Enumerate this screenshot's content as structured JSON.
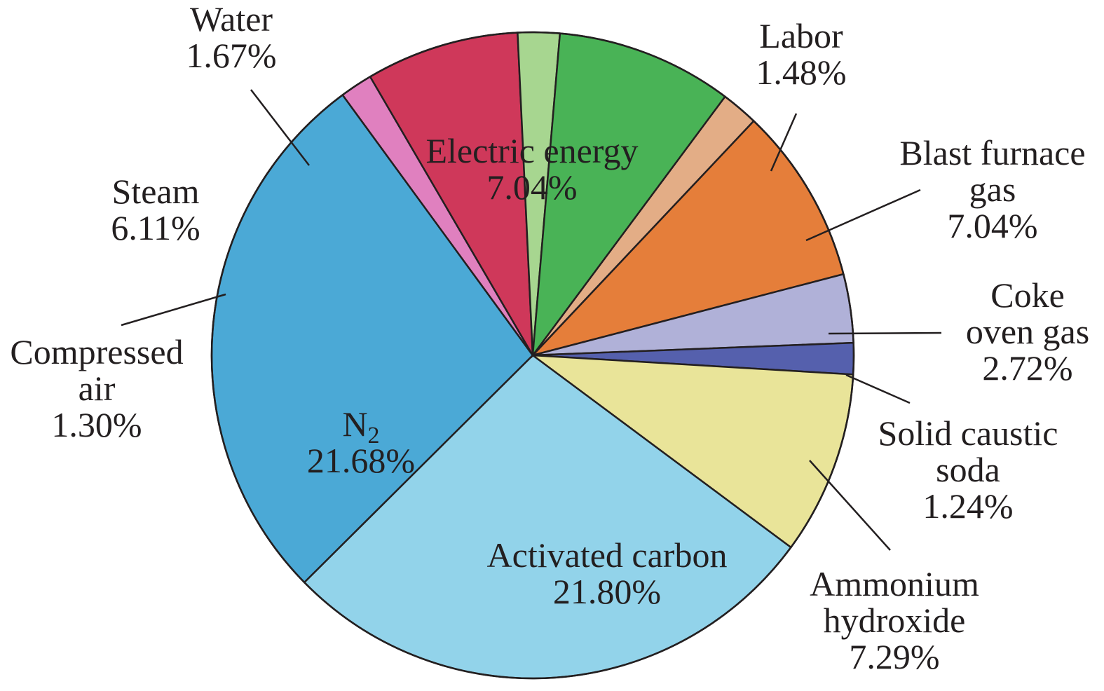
{
  "chart_data": {
    "type": "pie",
    "title": "",
    "slices": [
      {
        "key": "labor",
        "label_lines": [
          "Labor"
        ],
        "value_text": "1.48%",
        "value": 1.48,
        "color": "#e3ad86"
      },
      {
        "key": "bfg",
        "label_lines": [
          "Blast furnace",
          "gas"
        ],
        "value_text": "7.04%",
        "value": 7.04,
        "color": "#e57e3a"
      },
      {
        "key": "coke",
        "label_lines": [
          "Coke",
          "oven gas"
        ],
        "value_text": "2.72%",
        "value": 2.72,
        "color": "#b0b1d8"
      },
      {
        "key": "soda",
        "label_lines": [
          "Solid caustic",
          "soda"
        ],
        "value_text": "1.24%",
        "value": 1.24,
        "color": "#5560ad"
      },
      {
        "key": "ammonium",
        "label_lines": [
          "Ammonium",
          "hydroxide"
        ],
        "value_text": "7.29%",
        "value": 7.29,
        "color": "#e9e499"
      },
      {
        "key": "carbon",
        "label_lines": [
          "Activated carbon"
        ],
        "value_text": "21.80%",
        "value": 21.8,
        "color": "#92d3ea"
      },
      {
        "key": "n2",
        "label_lines": [
          "N",
          "2"
        ],
        "value_text": "21.68%",
        "value": 21.68,
        "color": "#4ba9d6"
      },
      {
        "key": "air",
        "label_lines": [
          "Compressed",
          "air"
        ],
        "value_text": "1.30%",
        "value": 1.3,
        "color": "#e080bf"
      },
      {
        "key": "steam",
        "label_lines": [
          "Steam"
        ],
        "value_text": "6.11%",
        "value": 6.11,
        "color": "#cf385a"
      },
      {
        "key": "water",
        "label_lines": [
          "Water"
        ],
        "value_text": "1.67%",
        "value": 1.67,
        "color": "#a7d690"
      },
      {
        "key": "electric",
        "label_lines": [
          "Electric energy"
        ],
        "value_text": "7.04%",
        "value": 7.04,
        "color": "#49b356"
      }
    ]
  }
}
